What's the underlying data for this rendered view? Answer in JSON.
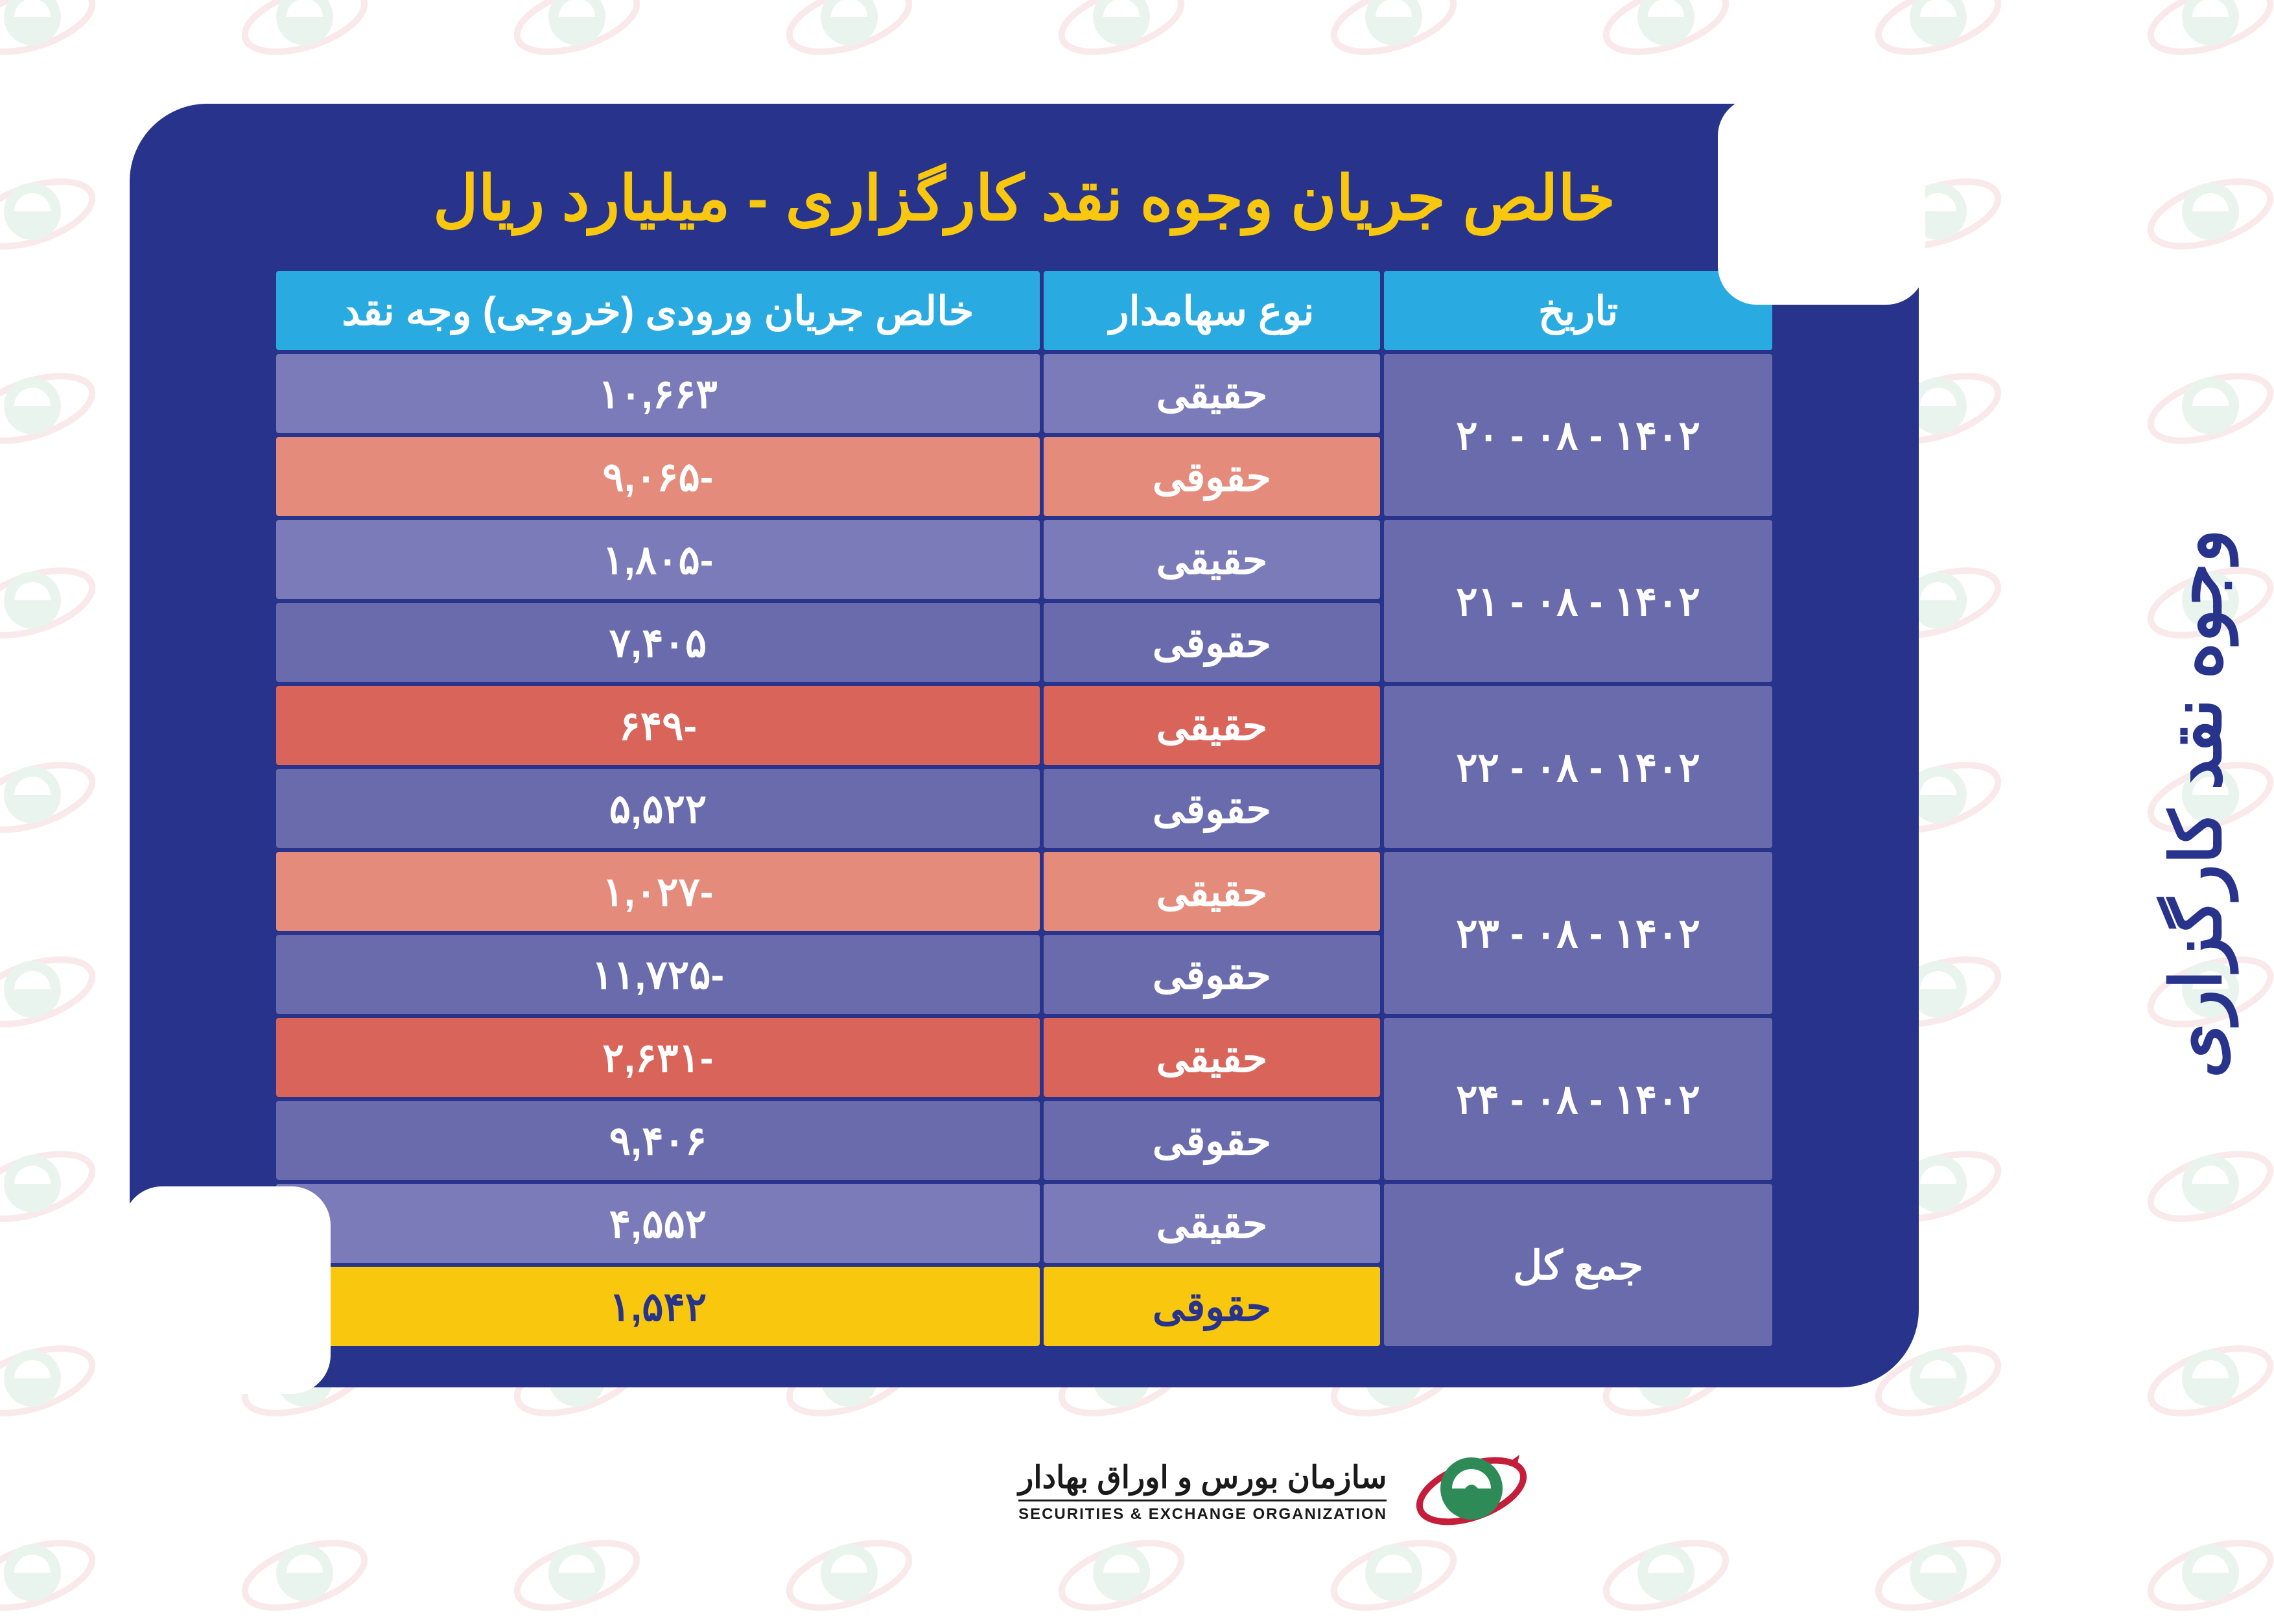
{
  "title": "خالص جریان وجوه نقد کارگزاری - میلیارد ریال",
  "side_title": "وجوه نقد کارگزاری",
  "columns": {
    "date": "تاریخ",
    "type": "نوع سهامدار",
    "flow": "خالص جریان ورودی (خروجی) وجه نقد"
  },
  "colors": {
    "card_bg": "#28348c",
    "title": "#f9c80e",
    "header_bg": "#29abe2",
    "violet_a": "#7a7bb8",
    "violet_b": "#6a6bad",
    "salmon": "#e58b7b",
    "red": "#d96459",
    "yellow": "#f9c80e",
    "white_text": "#ffffff",
    "dark_text": "#28348c"
  },
  "rows": [
    {
      "date": "۱۴۰۲ - ۰۸ - ۲۰",
      "cells": [
        {
          "type": "حقیقی",
          "flow": "۱۰,۶۶۳",
          "type_color": "violet_a",
          "flow_color": "violet_a"
        },
        {
          "type": "حقوقی",
          "flow": "-۹,۰۶۵",
          "type_color": "salmon",
          "flow_color": "salmon"
        }
      ],
      "date_color": "violet_b"
    },
    {
      "date": "۱۴۰۲ - ۰۸ - ۲۱",
      "cells": [
        {
          "type": "حقیقی",
          "flow": "-۱,۸۰۵",
          "type_color": "violet_a",
          "flow_color": "violet_a"
        },
        {
          "type": "حقوقی",
          "flow": "۷,۴۰۵",
          "type_color": "violet_b",
          "flow_color": "violet_b"
        }
      ],
      "date_color": "violet_b"
    },
    {
      "date": "۱۴۰۲ - ۰۸ - ۲۲",
      "cells": [
        {
          "type": "حقیقی",
          "flow": "-۶۴۹",
          "type_color": "red",
          "flow_color": "red"
        },
        {
          "type": "حقوقی",
          "flow": "۵,۵۲۲",
          "type_color": "violet_b",
          "flow_color": "violet_b"
        }
      ],
      "date_color": "violet_b"
    },
    {
      "date": "۱۴۰۲ - ۰۸ - ۲۳",
      "cells": [
        {
          "type": "حقیقی",
          "flow": "-۱,۰۲۷",
          "type_color": "salmon",
          "flow_color": "salmon"
        },
        {
          "type": "حقوقی",
          "flow": "-۱۱,۷۲۵",
          "type_color": "violet_b",
          "flow_color": "violet_b"
        }
      ],
      "date_color": "violet_b"
    },
    {
      "date": "۱۴۰۲ - ۰۸ - ۲۴",
      "cells": [
        {
          "type": "حقیقی",
          "flow": "-۲,۶۳۱",
          "type_color": "red",
          "flow_color": "red"
        },
        {
          "type": "حقوقی",
          "flow": "۹,۴۰۶",
          "type_color": "violet_b",
          "flow_color": "violet_b"
        }
      ],
      "date_color": "violet_b"
    },
    {
      "date": "جمع کل",
      "cells": [
        {
          "type": "حقیقی",
          "flow": "۴,۵۵۲",
          "type_color": "violet_a",
          "flow_color": "violet_a"
        },
        {
          "type": "حقوقی",
          "flow": "۱,۵۴۲",
          "type_color": "yellow",
          "flow_color": "yellow",
          "text": "dark"
        }
      ],
      "date_color": "violet_b"
    }
  ],
  "footer": {
    "fa": "سازمان بورس و اوراق بهادار",
    "en": "SECURITIES & EXCHANGE ORGANIZATION"
  }
}
